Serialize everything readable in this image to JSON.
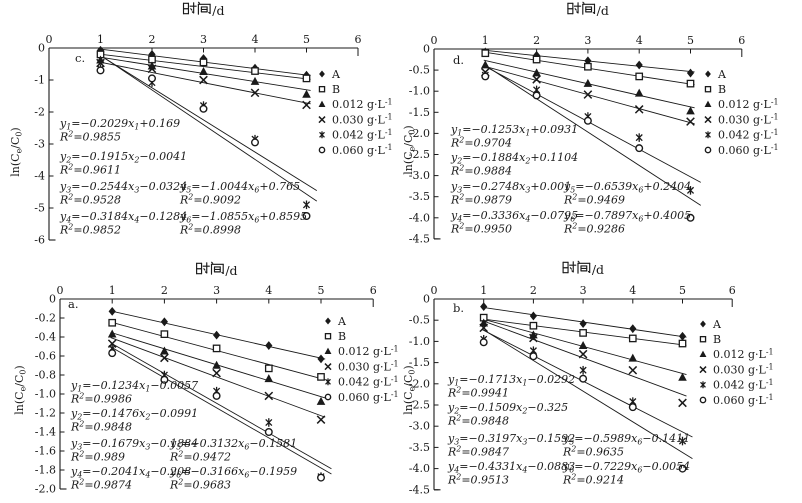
{
  "figure": {
    "xlabel": "时间/d",
    "ylabel": "ln(Cₑ/C₀)",
    "ink_color": "#1a1a1a",
    "legend": [
      {
        "marker": "diamond-filled",
        "label": "A"
      },
      {
        "marker": "square-open",
        "label": "B"
      },
      {
        "marker": "triangle-filled",
        "label": "0.012 g·L⁻¹"
      },
      {
        "marker": "x-cross",
        "label": "0.030 g·L⁻¹"
      },
      {
        "marker": "asterisk",
        "label": "0.042 g·L⁻¹"
      },
      {
        "marker": "circle-open",
        "label": "0.060 g·L⁻¹"
      }
    ]
  },
  "chart_data": [
    {
      "id": "c",
      "type": "scatter",
      "panel_label": "c.",
      "xlabel": "时间/d",
      "ylabel": "ln(Cₑ/C₀)",
      "xlim": [
        0,
        6
      ],
      "ylim": [
        -6,
        0
      ],
      "xticks": [
        "0",
        "1",
        "2",
        "3",
        "4",
        "5",
        "6"
      ],
      "yticks": [
        {
          "v": 0,
          "t": "0"
        },
        {
          "v": -1,
          "t": "-1"
        },
        {
          "v": -2,
          "t": "-2"
        },
        {
          "v": -3,
          "t": "-3"
        },
        {
          "v": -4,
          "t": "-4"
        },
        {
          "v": -5,
          "t": "-5"
        },
        {
          "v": -6,
          "t": "-6"
        }
      ],
      "x": [
        1,
        2,
        3,
        4,
        5
      ],
      "series": [
        {
          "name": "A",
          "marker": "diamond-filled",
          "y": [
            -0.07,
            -0.2,
            -0.33,
            -0.63,
            -0.85
          ],
          "fit": {
            "slope": -0.2029,
            "intercept": 0.169
          }
        },
        {
          "name": "B",
          "marker": "square-open",
          "y": [
            -0.2,
            -0.36,
            -0.45,
            -0.72,
            -0.95
          ],
          "fit": {
            "slope": -0.1915,
            "intercept": -0.0041
          }
        },
        {
          "name": "0.012 g·L⁻¹",
          "marker": "triangle-filled",
          "y": [
            -0.38,
            -0.57,
            -0.74,
            -1.05,
            -1.45
          ],
          "fit": {
            "slope": -0.2544,
            "intercept": -0.0324
          }
        },
        {
          "name": "0.030 g·L⁻¹",
          "marker": "x-cross",
          "y": [
            -0.47,
            -0.65,
            -1.0,
            -1.4,
            -1.78
          ],
          "fit": {
            "slope": -0.3184,
            "intercept": -0.1284
          }
        },
        {
          "name": "0.042 g·L⁻¹",
          "marker": "asterisk",
          "y": [
            -0.65,
            -1.08,
            -1.8,
            -2.85,
            -4.9
          ],
          "fit": {
            "slope": -1.0044,
            "intercept": 0.765
          }
        },
        {
          "name": "0.060 g·L⁻¹",
          "marker": "circle-open",
          "y": [
            -0.7,
            -0.95,
            -1.9,
            -2.95,
            -5.25
          ],
          "fit": {
            "slope": -1.0855,
            "intercept": 0.8595
          }
        }
      ],
      "equations": [
        {
          "eq": "y₁=−0.2029x₁+0.169",
          "r2": "R²=0.9855",
          "col": 1
        },
        {
          "eq": "y₂=−0.1915x₂−0.0041",
          "r2": "R²=0.9611",
          "col": 1
        },
        {
          "eq": "y₃=−0.2544x₃−0.0324",
          "r2": "R²=0.9528",
          "col": 1
        },
        {
          "eq": "y₄=−0.3184x₄−0.1284",
          "r2": "R²=0.9852",
          "col": 1
        },
        {
          "eq": "y₅=−1.0044x₆+0.765",
          "r2": "R²=0.9092",
          "col": 2
        },
        {
          "eq": "y₆=−1.0855x₆+0.8595",
          "r2": "R²=0.8998",
          "col": 2
        }
      ]
    },
    {
      "id": "d",
      "type": "scatter",
      "panel_label": "d.",
      "xlabel": "时间/d",
      "ylabel": "ln(Cₑ/C₀)",
      "xlim": [
        0,
        6
      ],
      "ylim": [
        -4.5,
        0
      ],
      "xticks": [
        "0",
        "1",
        "2",
        "3",
        "4",
        "5",
        "6"
      ],
      "yticks": [
        {
          "v": 0,
          "t": "0"
        },
        {
          "v": -0.5,
          "t": "-0.5"
        },
        {
          "v": -1,
          "t": "-1.0"
        },
        {
          "v": -1.5,
          "t": "-1.5"
        },
        {
          "v": -2,
          "t": "-2.0"
        },
        {
          "v": -2.5,
          "t": "-2.5"
        },
        {
          "v": -3,
          "t": "-3.0"
        },
        {
          "v": -3.5,
          "t": "-3.5"
        },
        {
          "v": -4,
          "t": "-4.0"
        },
        {
          "v": -4.5,
          "t": "-4.5"
        }
      ],
      "x": [
        1,
        2,
        3,
        4,
        5
      ],
      "series": [
        {
          "name": "A",
          "marker": "diamond-filled",
          "y": [
            -0.07,
            -0.15,
            -0.28,
            -0.38,
            -0.57
          ],
          "fit": {
            "slope": -0.1253,
            "intercept": 0.0931
          }
        },
        {
          "name": "B",
          "marker": "square-open",
          "y": [
            -0.1,
            -0.25,
            -0.42,
            -0.65,
            -0.82
          ],
          "fit": {
            "slope": -0.1884,
            "intercept": 0.1104
          }
        },
        {
          "name": "0.012 g·L⁻¹",
          "marker": "triangle-filled",
          "y": [
            -0.38,
            -0.57,
            -0.82,
            -1.05,
            -1.47
          ],
          "fit": {
            "slope": -0.2748,
            "intercept": 0.001
          }
        },
        {
          "name": "0.030 g·L⁻¹",
          "marker": "x-cross",
          "y": [
            -0.55,
            -0.72,
            -1.08,
            -1.43,
            -1.72
          ],
          "fit": {
            "slope": -0.3336,
            "intercept": -0.0795
          }
        },
        {
          "name": "0.042 g·L⁻¹",
          "marker": "asterisk",
          "y": [
            -0.62,
            -0.97,
            -1.6,
            -2.1,
            -3.35
          ],
          "fit": {
            "slope": -0.6539,
            "intercept": 0.2404
          }
        },
        {
          "name": "0.060 g·L⁻¹",
          "marker": "circle-open",
          "y": [
            -0.65,
            -1.1,
            -1.7,
            -2.35,
            -4.0
          ],
          "fit": {
            "slope": -0.7897,
            "intercept": 0.4005
          }
        }
      ],
      "equations": [
        {
          "eq": "y₁=−0.1253x₁+0.0931",
          "r2": "R²=0.9704",
          "col": 1
        },
        {
          "eq": "y₂=−0.1884x₂+0.1104",
          "r2": "R²=0.9884",
          "col": 1
        },
        {
          "eq": "y₃=−0.2748x₃+0.001",
          "r2": "R²=0.9879",
          "col": 1
        },
        {
          "eq": "y₄=−0.3336x₄−0.0795",
          "r2": "R²=0.9950",
          "col": 1
        },
        {
          "eq": "y₅=−0.6539x₆+0.2404",
          "r2": "R²=0.9469",
          "col": 2
        },
        {
          "eq": "y₆=−0.7897x₆+0.4005",
          "r2": "R²=0.9286",
          "col": 2
        }
      ]
    },
    {
      "id": "a",
      "type": "scatter",
      "panel_label": "a.",
      "xlabel": "时间/d",
      "ylabel": "ln(Cₑ/C₀)",
      "xlim": [
        0,
        6
      ],
      "ylim": [
        -2,
        0
      ],
      "xticks": [
        "0",
        "1",
        "2",
        "3",
        "4",
        "5",
        "6"
      ],
      "yticks": [
        {
          "v": 0,
          "t": "0"
        },
        {
          "v": -0.2,
          "t": "-0.2"
        },
        {
          "v": -0.4,
          "t": "-0.4"
        },
        {
          "v": -0.6,
          "t": "-0.6"
        },
        {
          "v": -0.8,
          "t": "-0.8"
        },
        {
          "v": -1,
          "t": "-1.0"
        },
        {
          "v": -1.2,
          "t": "-1.2"
        },
        {
          "v": -1.4,
          "t": "-1.4"
        },
        {
          "v": -1.6,
          "t": "-1.6"
        },
        {
          "v": -1.8,
          "t": "-1.8"
        },
        {
          "v": -2,
          "t": "-2.0"
        }
      ],
      "x": [
        1,
        2,
        3,
        4,
        5
      ],
      "series": [
        {
          "name": "A",
          "marker": "diamond-filled",
          "y": [
            -0.13,
            -0.24,
            -0.38,
            -0.49,
            -0.63
          ],
          "fit": {
            "slope": -0.1234,
            "intercept": -0.0057
          }
        },
        {
          "name": "B",
          "marker": "square-open",
          "y": [
            -0.25,
            -0.37,
            -0.52,
            -0.73,
            -0.82
          ],
          "fit": {
            "slope": -0.1476,
            "intercept": -0.0991
          }
        },
        {
          "name": "0.012 g·L⁻¹",
          "marker": "triangle-filled",
          "y": [
            -0.37,
            -0.55,
            -0.7,
            -0.84,
            -1.08
          ],
          "fit": {
            "slope": -0.1679,
            "intercept": -0.1884
          }
        },
        {
          "name": "0.030 g·L⁻¹",
          "marker": "x-cross",
          "y": [
            -0.47,
            -0.62,
            -0.78,
            -1.02,
            -1.27
          ],
          "fit": {
            "slope": -0.2041,
            "intercept": -0.208
          }
        },
        {
          "name": "0.042 g·L⁻¹",
          "marker": "asterisk",
          "y": [
            -0.52,
            -0.8,
            -0.97,
            -1.3,
            -1.87
          ],
          "fit": {
            "slope": -0.3132,
            "intercept": -0.1581
          }
        },
        {
          "name": "0.060 g·L⁻¹",
          "marker": "circle-open",
          "y": [
            -0.57,
            -0.85,
            -1.02,
            -1.4,
            -1.88
          ],
          "fit": {
            "slope": -0.3166,
            "intercept": -0.1959
          }
        }
      ],
      "equations": [
        {
          "eq": "y₁=−0.1234x₁−0.0057",
          "r2": "R²=0.9986",
          "col": 1
        },
        {
          "eq": "y₂=−0.1476x₂−0.0991",
          "r2": "R²=0.9848",
          "col": 1
        },
        {
          "eq": "y₃=−0.1679x₃−0.1884",
          "r2": "R²=0.989",
          "col": 1
        },
        {
          "eq": "y₄=−0.2041x₄−0.208",
          "r2": "R²=0.9874",
          "col": 1
        },
        {
          "eq": "y₅=−0.3132x₆−0.1581",
          "r2": "R²=0.9472",
          "col": 2
        },
        {
          "eq": "y₆=−0.3166x₆−0.1959",
          "r2": "R²=0.9683",
          "col": 2
        }
      ]
    },
    {
      "id": "b",
      "type": "scatter",
      "panel_label": "b.",
      "xlabel": "时间/d",
      "ylabel": "ln(Cₑ/C₀)",
      "xlim": [
        0,
        6
      ],
      "ylim": [
        -4.5,
        0
      ],
      "xticks": [
        "0",
        "1",
        "2",
        "3",
        "4",
        "5",
        "6"
      ],
      "yticks": [
        {
          "v": 0,
          "t": "0"
        },
        {
          "v": -0.5,
          "t": "-0.5"
        },
        {
          "v": -1,
          "t": "-1.0"
        },
        {
          "v": -1.5,
          "t": "-1.5"
        },
        {
          "v": -2,
          "t": "-2.0"
        },
        {
          "v": -2.5,
          "t": "-2.5"
        },
        {
          "v": -3,
          "t": "-3.0"
        },
        {
          "v": -3.5,
          "t": "-3.5"
        },
        {
          "v": -4,
          "t": "-4.0"
        },
        {
          "v": -4.5,
          "t": "-4.5"
        }
      ],
      "x": [
        1,
        2,
        3,
        4,
        5
      ],
      "series": [
        {
          "name": "A",
          "marker": "diamond-filled",
          "y": [
            -0.18,
            -0.4,
            -0.58,
            -0.7,
            -0.88
          ],
          "fit": {
            "slope": -0.1713,
            "intercept": -0.0292
          }
        },
        {
          "name": "B",
          "marker": "square-open",
          "y": [
            -0.44,
            -0.63,
            -0.8,
            -0.93,
            -1.05
          ],
          "fit": {
            "slope": -0.1509,
            "intercept": -0.325
          }
        },
        {
          "name": "0.012 g·L⁻¹",
          "marker": "triangle-filled",
          "y": [
            -0.57,
            -0.85,
            -1.1,
            -1.4,
            -1.85
          ],
          "fit": {
            "slope": -0.3197,
            "intercept": -0.1592
          }
        },
        {
          "name": "0.030 g·L⁻¹",
          "marker": "x-cross",
          "y": [
            -0.68,
            -0.92,
            -1.3,
            -1.68,
            -2.45
          ],
          "fit": {
            "slope": -0.4331,
            "intercept": -0.0883
          }
        },
        {
          "name": "0.042 g·L⁻¹",
          "marker": "asterisk",
          "y": [
            -0.95,
            -1.22,
            -1.68,
            -2.42,
            -3.35
          ],
          "fit": {
            "slope": -0.5989,
            "intercept": -0.1411
          }
        },
        {
          "name": "0.060 g·L⁻¹",
          "marker": "circle-open",
          "y": [
            -1.02,
            -1.35,
            -1.88,
            -2.55,
            -4.0
          ],
          "fit": {
            "slope": -0.7229,
            "intercept": -0.0054
          }
        }
      ],
      "equations": [
        {
          "eq": "y₁=−0.1713x₁−0.0292",
          "r2": "R²=0.9941",
          "col": 1
        },
        {
          "eq": "y₂=−0.1509x₂−0.325",
          "r2": "R²=0.9848",
          "col": 1
        },
        {
          "eq": "y₃=−0.3197x₃−0.1592",
          "r2": "R²=0.9847",
          "col": 1
        },
        {
          "eq": "y₄=−0.4331x₄−0.0883",
          "r2": "R²=0.9513",
          "col": 1
        },
        {
          "eq": "y₅=−0.5989x₆−0.1411",
          "r2": "R²=0.9635",
          "col": 2
        },
        {
          "eq": "y₆=−0.7229x₆−0.0054",
          "r2": "R²=0.9214",
          "col": 2
        }
      ]
    }
  ]
}
